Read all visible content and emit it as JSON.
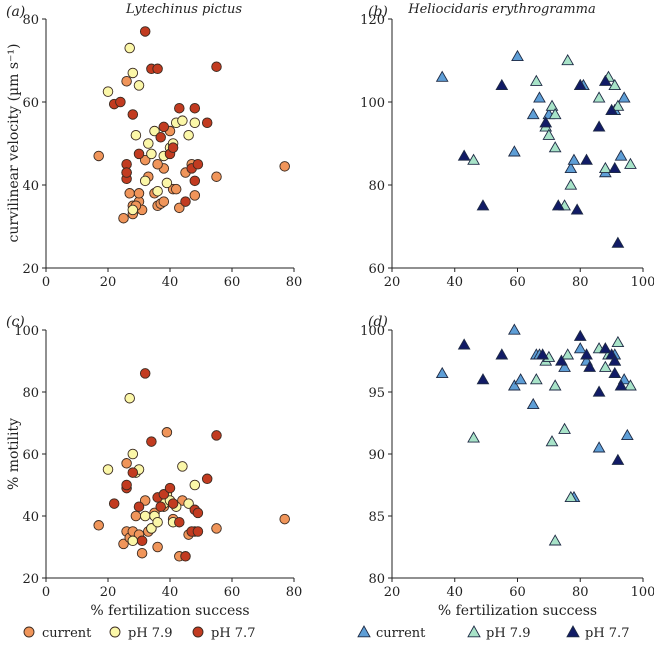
{
  "colors": {
    "current_circle": "#f0955a",
    "ph79_circle": "#fbf7a8",
    "ph77_circle": "#c23b20",
    "current_tri": "#5e9ed6",
    "ph79_tri": "#a8e3c8",
    "ph77_tri": "#111b66"
  },
  "legend_left": [
    {
      "label": "current",
      "marker": "circle",
      "color_key": "current_circle"
    },
    {
      "label": "pH 7.9",
      "marker": "circle",
      "color_key": "ph79_circle"
    },
    {
      "label": "pH 7.7",
      "marker": "circle",
      "color_key": "ph77_circle"
    }
  ],
  "legend_right": [
    {
      "label": "current",
      "marker": "triangle",
      "color_key": "current_tri"
    },
    {
      "label": "pH 7.9",
      "marker": "triangle",
      "color_key": "ph79_tri"
    },
    {
      "label": "pH 7.7",
      "marker": "triangle",
      "color_key": "ph77_tri"
    }
  ],
  "chart_data": [
    {
      "type": "scatter",
      "panel": "(a)",
      "title": "Lytechinus pictus",
      "xlabel": "",
      "ylabel": "curvilinear velocity (µm s⁻¹)",
      "xlim": [
        0,
        80
      ],
      "ylim": [
        20,
        80
      ],
      "xticks": [
        0,
        20,
        40,
        60,
        80
      ],
      "yticks": [
        20,
        40,
        60,
        80
      ],
      "marker": "circle",
      "series": [
        {
          "name": "current",
          "color_key": "current_circle",
          "points": [
            [
              17,
              47
            ],
            [
              25,
              32
            ],
            [
              26,
              43
            ],
            [
              27,
              38
            ],
            [
              28,
              33
            ],
            [
              28,
              35
            ],
            [
              30,
              36
            ],
            [
              31,
              34
            ],
            [
              32,
              46
            ],
            [
              33,
              42
            ],
            [
              35,
              38
            ],
            [
              36,
              35
            ],
            [
              37,
              35.5
            ],
            [
              38,
              36
            ],
            [
              38,
              44
            ],
            [
              40,
              53
            ],
            [
              41,
              39
            ],
            [
              42,
              39
            ],
            [
              43,
              34.5
            ],
            [
              45,
              43
            ],
            [
              47,
              45
            ],
            [
              48,
              37.5
            ],
            [
              55,
              42
            ],
            [
              77,
              44.5
            ],
            [
              26,
              65
            ],
            [
              29,
              35
            ],
            [
              30,
              38
            ],
            [
              36,
              45
            ]
          ]
        },
        {
          "name": "pH 7.9",
          "color_key": "ph79_circle",
          "points": [
            [
              20,
              62.5
            ],
            [
              27,
              73
            ],
            [
              28,
              67
            ],
            [
              29,
              52
            ],
            [
              30,
              64
            ],
            [
              32,
              41
            ],
            [
              34,
              47.5
            ],
            [
              35,
              53
            ],
            [
              36,
              38.5
            ],
            [
              38,
              47
            ],
            [
              39,
              40.5
            ],
            [
              40,
              49
            ],
            [
              41,
              50
            ],
            [
              42,
              55
            ],
            [
              44,
              55.5
            ],
            [
              46,
              52
            ],
            [
              48,
              55
            ],
            [
              28,
              34
            ],
            [
              33,
              50
            ]
          ]
        },
        {
          "name": "pH 7.7",
          "color_key": "ph77_circle",
          "points": [
            [
              22,
              59.5
            ],
            [
              24,
              60
            ],
            [
              26,
              45
            ],
            [
              26,
              41.5
            ],
            [
              28,
              57
            ],
            [
              30,
              47.5
            ],
            [
              32,
              77
            ],
            [
              34,
              68
            ],
            [
              36,
              68
            ],
            [
              37,
              51.5
            ],
            [
              38,
              54
            ],
            [
              40,
              47.5
            ],
            [
              41,
              49
            ],
            [
              43,
              58.5
            ],
            [
              45,
              36
            ],
            [
              47,
              44
            ],
            [
              48,
              58.5
            ],
            [
              48,
              41
            ],
            [
              49,
              45
            ],
            [
              52,
              55
            ],
            [
              55,
              68.5
            ],
            [
              26,
              43
            ]
          ]
        }
      ]
    },
    {
      "type": "scatter",
      "panel": "(b)",
      "title": "Heliocidaris erythrogramma",
      "xlabel": "",
      "ylabel": "",
      "xlim": [
        20,
        100
      ],
      "ylim": [
        60,
        120
      ],
      "xticks": [
        20,
        40,
        60,
        80,
        100
      ],
      "yticks": [
        60,
        80,
        100,
        120
      ],
      "marker": "triangle",
      "series": [
        {
          "name": "current",
          "color_key": "current_tri",
          "points": [
            [
              36,
              106
            ],
            [
              59,
              88
            ],
            [
              60,
              111
            ],
            [
              65,
              97
            ],
            [
              67,
              101
            ],
            [
              70,
              97
            ],
            [
              77,
              84
            ],
            [
              78,
              86
            ],
            [
              80,
              104
            ],
            [
              81,
              104
            ],
            [
              88,
              83
            ],
            [
              91,
              98
            ],
            [
              93,
              87
            ],
            [
              94,
              101
            ]
          ]
        },
        {
          "name": "pH 7.9",
          "color_key": "ph79_tri",
          "points": [
            [
              46,
              86
            ],
            [
              66,
              105
            ],
            [
              69,
              94
            ],
            [
              70,
              92
            ],
            [
              71,
              99
            ],
            [
              72,
              97
            ],
            [
              72,
              89
            ],
            [
              75,
              75
            ],
            [
              76,
              110
            ],
            [
              77,
              80
            ],
            [
              86,
              101
            ],
            [
              88,
              84
            ],
            [
              89,
              106
            ],
            [
              91,
              104
            ],
            [
              96,
              85
            ],
            [
              92,
              99
            ]
          ]
        },
        {
          "name": "pH 7.7",
          "color_key": "ph77_tri",
          "points": [
            [
              43,
              87
            ],
            [
              49,
              75
            ],
            [
              55,
              104
            ],
            [
              69,
              95
            ],
            [
              73,
              75
            ],
            [
              79,
              74
            ],
            [
              82,
              86
            ],
            [
              86,
              94
            ],
            [
              88,
              105
            ],
            [
              90,
              98
            ],
            [
              91,
              84
            ],
            [
              92,
              66
            ],
            [
              80,
              104
            ]
          ]
        }
      ]
    },
    {
      "type": "scatter",
      "panel": "(c)",
      "title": "",
      "xlabel": "% fertilization success",
      "ylabel": "% motility",
      "xlim": [
        0,
        80
      ],
      "ylim": [
        20,
        100
      ],
      "xticks": [
        0,
        20,
        40,
        60,
        80
      ],
      "yticks": [
        20,
        40,
        60,
        80,
        100
      ],
      "marker": "circle",
      "series": [
        {
          "name": "current",
          "color_key": "current_circle",
          "points": [
            [
              17,
              37
            ],
            [
              25,
              31
            ],
            [
              26,
              35
            ],
            [
              27,
              33
            ],
            [
              28,
              35
            ],
            [
              30,
              34
            ],
            [
              31,
              28
            ],
            [
              32,
              45
            ],
            [
              33,
              35
            ],
            [
              35,
              41
            ],
            [
              36,
              30
            ],
            [
              37,
              46
            ],
            [
              38,
              43
            ],
            [
              39,
              67
            ],
            [
              41,
              39
            ],
            [
              43,
              27
            ],
            [
              44,
              45
            ],
            [
              46,
              34
            ],
            [
              48,
              35
            ],
            [
              55,
              36
            ],
            [
              77,
              39
            ],
            [
              26,
              57
            ],
            [
              29,
              40
            ],
            [
              34,
              36
            ]
          ]
        },
        {
          "name": "pH 7.9",
          "color_key": "ph79_circle",
          "points": [
            [
              20,
              55
            ],
            [
              27,
              78
            ],
            [
              28,
              60
            ],
            [
              29,
              54
            ],
            [
              30,
              55
            ],
            [
              32,
              40
            ],
            [
              34,
              36
            ],
            [
              35,
              40
            ],
            [
              36,
              38
            ],
            [
              38,
              44
            ],
            [
              39,
              47
            ],
            [
              40,
              45
            ],
            [
              41,
              38
            ],
            [
              42,
              43
            ],
            [
              44,
              56
            ],
            [
              46,
              44
            ],
            [
              48,
              50
            ],
            [
              28,
              32
            ]
          ]
        },
        {
          "name": "pH 7.7",
          "color_key": "ph77_circle",
          "points": [
            [
              22,
              44
            ],
            [
              26,
              49
            ],
            [
              26,
              50
            ],
            [
              28,
              54
            ],
            [
              30,
              43
            ],
            [
              32,
              86
            ],
            [
              34,
              64
            ],
            [
              36,
              46
            ],
            [
              37,
              43
            ],
            [
              38,
              47
            ],
            [
              40,
              49
            ],
            [
              41,
              44
            ],
            [
              43,
              38
            ],
            [
              45,
              27
            ],
            [
              47,
              35
            ],
            [
              48,
              42
            ],
            [
              49,
              41
            ],
            [
              49,
              35
            ],
            [
              52,
              52
            ],
            [
              55,
              66
            ],
            [
              31,
              32
            ]
          ]
        }
      ]
    },
    {
      "type": "scatter",
      "panel": "(d)",
      "title": "",
      "xlabel": "% fertilization success",
      "ylabel": "",
      "xlim": [
        20,
        100
      ],
      "ylim": [
        80,
        100
      ],
      "xticks": [
        20,
        40,
        60,
        80,
        100
      ],
      "yticks": [
        80,
        85,
        90,
        95,
        100
      ],
      "marker": "triangle",
      "series": [
        {
          "name": "current",
          "color_key": "current_tri",
          "points": [
            [
              36,
              96.5
            ],
            [
              59,
              95.5
            ],
            [
              59,
              100
            ],
            [
              61,
              96
            ],
            [
              65,
              94
            ],
            [
              66,
              98
            ],
            [
              67,
              98
            ],
            [
              75,
              97
            ],
            [
              78,
              86.5
            ],
            [
              80,
              98.5
            ],
            [
              82,
              97.5
            ],
            [
              86,
              90.5
            ],
            [
              91,
              98
            ],
            [
              94,
              96
            ],
            [
              95,
              91.5
            ]
          ]
        },
        {
          "name": "pH 7.9",
          "color_key": "ph79_tri",
          "points": [
            [
              46,
              91.3
            ],
            [
              66,
              96
            ],
            [
              69,
              97.5
            ],
            [
              70,
              97.8
            ],
            [
              71,
              91
            ],
            [
              72,
              95.5
            ],
            [
              72,
              83
            ],
            [
              75,
              92
            ],
            [
              76,
              98
            ],
            [
              77,
              86.5
            ],
            [
              86,
              98.5
            ],
            [
              88,
              97
            ],
            [
              89,
              98
            ],
            [
              91,
              97.5
            ],
            [
              92,
              99
            ],
            [
              96,
              95.5
            ]
          ]
        },
        {
          "name": "pH 7.7",
          "color_key": "ph77_tri",
          "points": [
            [
              43,
              98.8
            ],
            [
              49,
              96
            ],
            [
              55,
              98
            ],
            [
              68,
              98
            ],
            [
              74,
              97.5
            ],
            [
              80,
              99.5
            ],
            [
              82,
              98
            ],
            [
              86,
              95
            ],
            [
              88,
              98.5
            ],
            [
              90,
              98
            ],
            [
              91,
              97.5
            ],
            [
              92,
              89.5
            ],
            [
              93,
              95.5
            ],
            [
              91,
              96.5
            ],
            [
              83,
              97
            ]
          ]
        }
      ]
    }
  ]
}
